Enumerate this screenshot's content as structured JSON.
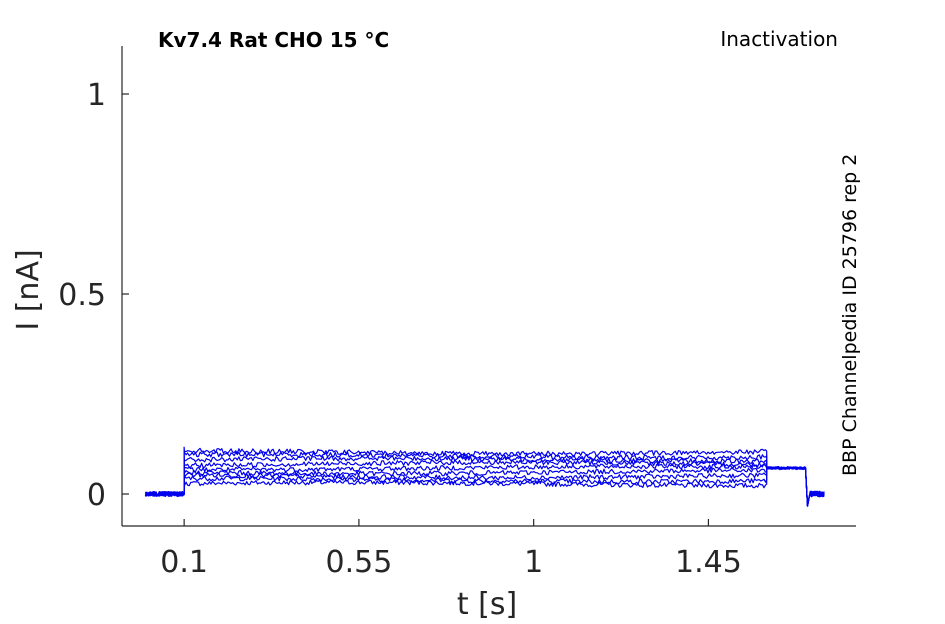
{
  "chart_data": {
    "type": "line",
    "title": "Kv7.4  Rat  CHO  15 °C",
    "protocol": "Inactivation",
    "source_label": "BBP Channelpedia ID 25796 rep 2",
    "xlabel": "t [s]",
    "ylabel": "I [nA]",
    "xlim": [
      -0.06,
      1.83
    ],
    "ylim": [
      -0.08,
      1.12
    ],
    "x_ticks": [
      0.1,
      0.55,
      1,
      1.45
    ],
    "x_tick_labels": [
      "0.1",
      "0.55",
      "1",
      "1.45"
    ],
    "y_ticks": [
      0,
      0.5,
      1
    ],
    "y_tick_labels": [
      "0",
      "0.5",
      "1"
    ],
    "grid": false,
    "legend": "none",
    "trace_color": "#0000ee",
    "segments": [
      {
        "t_start": 0.0,
        "t_end": 0.1,
        "level": 0.0
      },
      {
        "t_start": 0.1,
        "t_end": 1.6,
        "level_min": 0.02,
        "level_max": 0.12
      },
      {
        "t_start": 1.6,
        "t_end": 1.7,
        "level": 0.065
      },
      {
        "t_start": 1.71,
        "t_end": 1.75,
        "level": 0.0
      }
    ],
    "series": [
      {
        "step_level": 0.025,
        "tail_level": 0.065
      },
      {
        "step_level": 0.035,
        "tail_level": 0.065
      },
      {
        "step_level": 0.045,
        "tail_level": 0.066
      },
      {
        "step_level": 0.055,
        "tail_level": 0.064
      },
      {
        "step_level": 0.065,
        "tail_level": 0.065
      },
      {
        "step_level": 0.075,
        "tail_level": 0.066
      },
      {
        "step_level": 0.085,
        "tail_level": 0.064
      },
      {
        "step_level": 0.095,
        "tail_level": 0.065
      },
      {
        "step_level": 0.105,
        "tail_level": 0.065
      }
    ]
  }
}
